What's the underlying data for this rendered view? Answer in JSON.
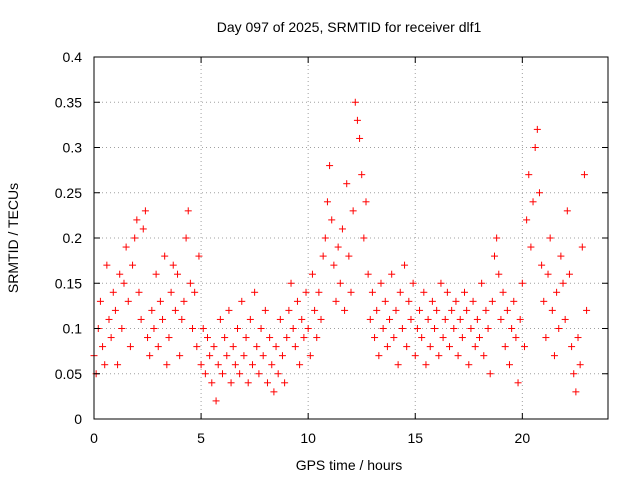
{
  "chart_data": {
    "type": "scatter",
    "title": "Day 097 of 2025, SRMTID for receiver dlf1",
    "xlabel": "GPS time / hours",
    "ylabel": "SRMTID / TECUs",
    "xlim": [
      0,
      24
    ],
    "ylim": [
      0,
      0.4
    ],
    "xticks": [
      0,
      5,
      10,
      15,
      20
    ],
    "yticks": [
      0,
      0.05,
      0.1,
      0.15,
      0.2,
      0.25,
      0.3,
      0.35,
      0.4
    ],
    "xtick_labels": [
      "0",
      "5",
      "10",
      "15",
      "20"
    ],
    "ytick_labels": [
      "0",
      "0.05",
      "0.1",
      "0.15",
      "0.2",
      "0.25",
      "0.3",
      "0.35",
      "0.4"
    ],
    "grid": true,
    "marker": "+",
    "marker_color": "#ff0000",
    "series": [
      {
        "name": "dlf1",
        "points": [
          [
            0.0,
            0.07
          ],
          [
            0.1,
            0.05
          ],
          [
            0.2,
            0.1
          ],
          [
            0.3,
            0.13
          ],
          [
            0.4,
            0.08
          ],
          [
            0.5,
            0.06
          ],
          [
            0.6,
            0.17
          ],
          [
            0.7,
            0.11
          ],
          [
            0.8,
            0.09
          ],
          [
            0.9,
            0.14
          ],
          [
            1.0,
            0.12
          ],
          [
            1.1,
            0.06
          ],
          [
            1.2,
            0.16
          ],
          [
            1.3,
            0.1
          ],
          [
            1.4,
            0.15
          ],
          [
            1.5,
            0.19
          ],
          [
            1.6,
            0.13
          ],
          [
            1.7,
            0.08
          ],
          [
            1.8,
            0.17
          ],
          [
            1.9,
            0.2
          ],
          [
            2.0,
            0.22
          ],
          [
            2.1,
            0.14
          ],
          [
            2.2,
            0.11
          ],
          [
            2.3,
            0.21
          ],
          [
            2.4,
            0.23
          ],
          [
            2.5,
            0.09
          ],
          [
            2.6,
            0.07
          ],
          [
            2.7,
            0.12
          ],
          [
            2.8,
            0.1
          ],
          [
            2.9,
            0.16
          ],
          [
            3.0,
            0.08
          ],
          [
            3.1,
            0.13
          ],
          [
            3.2,
            0.11
          ],
          [
            3.3,
            0.18
          ],
          [
            3.4,
            0.06
          ],
          [
            3.5,
            0.09
          ],
          [
            3.6,
            0.14
          ],
          [
            3.7,
            0.17
          ],
          [
            3.8,
            0.12
          ],
          [
            3.9,
            0.16
          ],
          [
            4.0,
            0.07
          ],
          [
            4.1,
            0.11
          ],
          [
            4.2,
            0.13
          ],
          [
            4.3,
            0.2
          ],
          [
            4.4,
            0.23
          ],
          [
            4.5,
            0.15
          ],
          [
            4.6,
            0.1
          ],
          [
            4.7,
            0.14
          ],
          [
            4.8,
            0.08
          ],
          [
            4.9,
            0.18
          ],
          [
            5.0,
            0.06
          ],
          [
            5.1,
            0.1
          ],
          [
            5.2,
            0.05
          ],
          [
            5.3,
            0.09
          ],
          [
            5.4,
            0.07
          ],
          [
            5.5,
            0.04
          ],
          [
            5.6,
            0.08
          ],
          [
            5.7,
            0.02
          ],
          [
            5.8,
            0.06
          ],
          [
            5.9,
            0.11
          ],
          [
            6.0,
            0.05
          ],
          [
            6.1,
            0.09
          ],
          [
            6.2,
            0.07
          ],
          [
            6.3,
            0.12
          ],
          [
            6.4,
            0.04
          ],
          [
            6.5,
            0.08
          ],
          [
            6.6,
            0.06
          ],
          [
            6.7,
            0.1
          ],
          [
            6.8,
            0.05
          ],
          [
            6.9,
            0.13
          ],
          [
            7.0,
            0.07
          ],
          [
            7.1,
            0.09
          ],
          [
            7.2,
            0.04
          ],
          [
            7.3,
            0.11
          ],
          [
            7.4,
            0.06
          ],
          [
            7.5,
            0.14
          ],
          [
            7.6,
            0.08
          ],
          [
            7.7,
            0.05
          ],
          [
            7.8,
            0.1
          ],
          [
            7.9,
            0.07
          ],
          [
            8.0,
            0.12
          ],
          [
            8.1,
            0.04
          ],
          [
            8.2,
            0.09
          ],
          [
            8.3,
            0.06
          ],
          [
            8.4,
            0.03
          ],
          [
            8.5,
            0.08
          ],
          [
            8.6,
            0.05
          ],
          [
            8.7,
            0.11
          ],
          [
            8.8,
            0.07
          ],
          [
            8.9,
            0.04
          ],
          [
            9.0,
            0.09
          ],
          [
            9.1,
            0.12
          ],
          [
            9.2,
            0.15
          ],
          [
            9.3,
            0.1
          ],
          [
            9.4,
            0.08
          ],
          [
            9.5,
            0.13
          ],
          [
            9.6,
            0.06
          ],
          [
            9.7,
            0.11
          ],
          [
            9.8,
            0.09
          ],
          [
            9.9,
            0.14
          ],
          [
            10.0,
            0.1
          ],
          [
            10.1,
            0.07
          ],
          [
            10.2,
            0.16
          ],
          [
            10.3,
            0.12
          ],
          [
            10.4,
            0.09
          ],
          [
            10.5,
            0.14
          ],
          [
            10.6,
            0.11
          ],
          [
            10.7,
            0.18
          ],
          [
            10.8,
            0.2
          ],
          [
            10.9,
            0.24
          ],
          [
            11.0,
            0.28
          ],
          [
            11.1,
            0.22
          ],
          [
            11.2,
            0.17
          ],
          [
            11.3,
            0.13
          ],
          [
            11.4,
            0.19
          ],
          [
            11.5,
            0.15
          ],
          [
            11.6,
            0.21
          ],
          [
            11.7,
            0.12
          ],
          [
            11.8,
            0.26
          ],
          [
            11.9,
            0.18
          ],
          [
            12.0,
            0.14
          ],
          [
            12.1,
            0.23
          ],
          [
            12.2,
            0.35
          ],
          [
            12.3,
            0.33
          ],
          [
            12.4,
            0.31
          ],
          [
            12.5,
            0.27
          ],
          [
            12.6,
            0.2
          ],
          [
            12.7,
            0.24
          ],
          [
            12.8,
            0.16
          ],
          [
            12.9,
            0.11
          ],
          [
            13.0,
            0.14
          ],
          [
            13.1,
            0.09
          ],
          [
            13.2,
            0.12
          ],
          [
            13.3,
            0.07
          ],
          [
            13.4,
            0.15
          ],
          [
            13.5,
            0.1
          ],
          [
            13.6,
            0.13
          ],
          [
            13.7,
            0.08
          ],
          [
            13.8,
            0.11
          ],
          [
            13.9,
            0.16
          ],
          [
            14.0,
            0.09
          ],
          [
            14.1,
            0.12
          ],
          [
            14.2,
            0.06
          ],
          [
            14.3,
            0.14
          ],
          [
            14.4,
            0.1
          ],
          [
            14.5,
            0.17
          ],
          [
            14.6,
            0.08
          ],
          [
            14.7,
            0.13
          ],
          [
            14.8,
            0.11
          ],
          [
            14.9,
            0.15
          ],
          [
            15.0,
            0.07
          ],
          [
            15.1,
            0.1
          ],
          [
            15.2,
            0.12
          ],
          [
            15.3,
            0.09
          ],
          [
            15.4,
            0.14
          ],
          [
            15.5,
            0.06
          ],
          [
            15.6,
            0.11
          ],
          [
            15.7,
            0.08
          ],
          [
            15.8,
            0.13
          ],
          [
            15.9,
            0.1
          ],
          [
            16.0,
            0.12
          ],
          [
            16.1,
            0.07
          ],
          [
            16.2,
            0.15
          ],
          [
            16.3,
            0.09
          ],
          [
            16.4,
            0.11
          ],
          [
            16.5,
            0.14
          ],
          [
            16.6,
            0.08
          ],
          [
            16.7,
            0.12
          ],
          [
            16.8,
            0.1
          ],
          [
            16.9,
            0.13
          ],
          [
            17.0,
            0.07
          ],
          [
            17.1,
            0.11
          ],
          [
            17.2,
            0.09
          ],
          [
            17.3,
            0.14
          ],
          [
            17.4,
            0.12
          ],
          [
            17.5,
            0.06
          ],
          [
            17.6,
            0.1
          ],
          [
            17.7,
            0.13
          ],
          [
            17.8,
            0.08
          ],
          [
            17.9,
            0.11
          ],
          [
            18.0,
            0.09
          ],
          [
            18.1,
            0.15
          ],
          [
            18.2,
            0.07
          ],
          [
            18.3,
            0.12
          ],
          [
            18.4,
            0.1
          ],
          [
            18.5,
            0.05
          ],
          [
            18.6,
            0.13
          ],
          [
            18.7,
            0.18
          ],
          [
            18.8,
            0.2
          ],
          [
            18.9,
            0.16
          ],
          [
            19.0,
            0.11
          ],
          [
            19.1,
            0.14
          ],
          [
            19.2,
            0.08
          ],
          [
            19.3,
            0.12
          ],
          [
            19.4,
            0.06
          ],
          [
            19.5,
            0.1
          ],
          [
            19.6,
            0.13
          ],
          [
            19.7,
            0.09
          ],
          [
            19.8,
            0.04
          ],
          [
            19.9,
            0.11
          ],
          [
            20.0,
            0.15
          ],
          [
            20.1,
            0.08
          ],
          [
            20.2,
            0.22
          ],
          [
            20.3,
            0.27
          ],
          [
            20.4,
            0.19
          ],
          [
            20.5,
            0.24
          ],
          [
            20.6,
            0.3
          ],
          [
            20.7,
            0.32
          ],
          [
            20.8,
            0.25
          ],
          [
            20.9,
            0.17
          ],
          [
            21.0,
            0.13
          ],
          [
            21.1,
            0.09
          ],
          [
            21.2,
            0.16
          ],
          [
            21.3,
            0.2
          ],
          [
            21.4,
            0.12
          ],
          [
            21.5,
            0.07
          ],
          [
            21.6,
            0.14
          ],
          [
            21.7,
            0.1
          ],
          [
            21.8,
            0.18
          ],
          [
            21.9,
            0.15
          ],
          [
            22.0,
            0.11
          ],
          [
            22.1,
            0.23
          ],
          [
            22.2,
            0.16
          ],
          [
            22.3,
            0.08
          ],
          [
            22.4,
            0.05
          ],
          [
            22.5,
            0.03
          ],
          [
            22.6,
            0.09
          ],
          [
            22.7,
            0.06
          ],
          [
            22.8,
            0.19
          ],
          [
            22.9,
            0.27
          ],
          [
            23.0,
            0.12
          ]
        ]
      }
    ]
  }
}
